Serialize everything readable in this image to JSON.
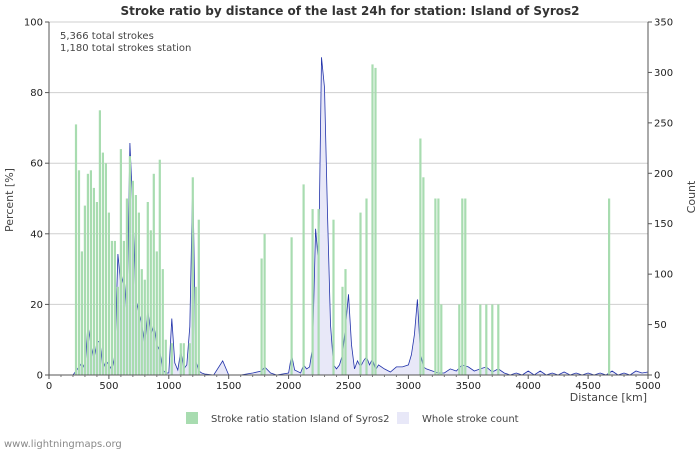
{
  "chart_data": {
    "type": "bar",
    "title": "Stroke ratio by distance of the last 24h for station: Island of Syros2",
    "info_lines": [
      "5,366 total strokes",
      "1,180 total strokes station"
    ],
    "xlabel": "Distance   [km]",
    "ylabel_left": "Percent   [%]",
    "ylabel_right": "Count",
    "xlim": [
      0,
      5000
    ],
    "ylim_left": [
      0,
      100
    ],
    "ylim_right": [
      0,
      350
    ],
    "x_ticks": [
      "0",
      "500",
      "1000",
      "1500",
      "2000",
      "2500",
      "3000",
      "3500",
      "4000",
      "4500",
      "5000"
    ],
    "y_ticks_left": [
      "0",
      "20",
      "40",
      "60",
      "80",
      "100"
    ],
    "y_ticks_right": [
      "0",
      "50",
      "100",
      "150",
      "200",
      "250",
      "300",
      "350"
    ],
    "bin_width_km": 25,
    "series": [
      {
        "name": "Stroke ratio station Island of Syros2",
        "kind": "bar",
        "axis": "left",
        "color": "#a8dcb0",
        "points": [
          [
            225,
            71
          ],
          [
            250,
            58
          ],
          [
            275,
            35
          ],
          [
            300,
            48
          ],
          [
            325,
            57
          ],
          [
            350,
            58
          ],
          [
            375,
            53
          ],
          [
            400,
            49
          ],
          [
            425,
            75
          ],
          [
            450,
            63
          ],
          [
            475,
            60
          ],
          [
            500,
            46
          ],
          [
            525,
            38
          ],
          [
            550,
            38
          ],
          [
            575,
            25
          ],
          [
            600,
            64
          ],
          [
            625,
            38
          ],
          [
            650,
            50
          ],
          [
            675,
            62
          ],
          [
            700,
            55
          ],
          [
            725,
            51
          ],
          [
            750,
            46
          ],
          [
            775,
            30
          ],
          [
            800,
            27
          ],
          [
            825,
            49
          ],
          [
            850,
            41
          ],
          [
            875,
            57
          ],
          [
            900,
            35
          ],
          [
            925,
            61
          ],
          [
            950,
            30
          ],
          [
            975,
            10
          ],
          [
            1025,
            9
          ],
          [
            1100,
            9
          ],
          [
            1125,
            9
          ],
          [
            1175,
            9
          ],
          [
            1200,
            56
          ],
          [
            1225,
            25
          ],
          [
            1250,
            44
          ],
          [
            1775,
            33
          ],
          [
            1800,
            40
          ],
          [
            2025,
            39
          ],
          [
            2125,
            54
          ],
          [
            2200,
            47
          ],
          [
            2250,
            47
          ],
          [
            2375,
            44
          ],
          [
            2450,
            25
          ],
          [
            2475,
            30
          ],
          [
            2600,
            46
          ],
          [
            2650,
            50
          ],
          [
            2700,
            88
          ],
          [
            2725,
            87
          ],
          [
            3100,
            67
          ],
          [
            3125,
            56
          ],
          [
            3225,
            50
          ],
          [
            3250,
            50
          ],
          [
            3275,
            20
          ],
          [
            3425,
            20
          ],
          [
            3450,
            50
          ],
          [
            3475,
            50
          ],
          [
            3600,
            20
          ],
          [
            3650,
            20
          ],
          [
            3700,
            20
          ],
          [
            3750,
            20
          ],
          [
            4675,
            50
          ]
        ]
      },
      {
        "name": "Whole stroke count",
        "kind": "area",
        "axis": "right",
        "color": "#e8e8f8",
        "line_color": "#2233aa",
        "points": [
          [
            200,
            0
          ],
          [
            225,
            4
          ],
          [
            250,
            8
          ],
          [
            275,
            12
          ],
          [
            300,
            6
          ],
          [
            325,
            50
          ],
          [
            350,
            30
          ],
          [
            375,
            16
          ],
          [
            400,
            32
          ],
          [
            425,
            34
          ],
          [
            450,
            6
          ],
          [
            475,
            14
          ],
          [
            500,
            10
          ],
          [
            525,
            5
          ],
          [
            550,
            20
          ],
          [
            575,
            120
          ],
          [
            600,
            88
          ],
          [
            625,
            100
          ],
          [
            650,
            60
          ],
          [
            675,
            230
          ],
          [
            700,
            163
          ],
          [
            725,
            75
          ],
          [
            750,
            62
          ],
          [
            775,
            50
          ],
          [
            800,
            30
          ],
          [
            825,
            65
          ],
          [
            850,
            40
          ],
          [
            875,
            50
          ],
          [
            900,
            30
          ],
          [
            925,
            24
          ],
          [
            950,
            5
          ],
          [
            975,
            2
          ],
          [
            1000,
            2
          ],
          [
            1025,
            56
          ],
          [
            1050,
            12
          ],
          [
            1075,
            5
          ],
          [
            1100,
            24
          ],
          [
            1125,
            6
          ],
          [
            1150,
            10
          ],
          [
            1175,
            48
          ],
          [
            1200,
            195
          ],
          [
            1225,
            14
          ],
          [
            1250,
            4
          ],
          [
            1275,
            2
          ],
          [
            1300,
            1
          ],
          [
            1375,
            0
          ],
          [
            1450,
            14
          ],
          [
            1500,
            0
          ],
          [
            1600,
            0
          ],
          [
            1700,
            2
          ],
          [
            1775,
            4
          ],
          [
            1800,
            8
          ],
          [
            1850,
            2
          ],
          [
            1900,
            0
          ],
          [
            2000,
            2
          ],
          [
            2025,
            20
          ],
          [
            2050,
            5
          ],
          [
            2100,
            2
          ],
          [
            2125,
            10
          ],
          [
            2150,
            6
          ],
          [
            2175,
            8
          ],
          [
            2200,
            28
          ],
          [
            2225,
            145
          ],
          [
            2250,
            110
          ],
          [
            2275,
            315
          ],
          [
            2300,
            285
          ],
          [
            2325,
            160
          ],
          [
            2350,
            50
          ],
          [
            2375,
            10
          ],
          [
            2400,
            6
          ],
          [
            2425,
            10
          ],
          [
            2450,
            20
          ],
          [
            2475,
            48
          ],
          [
            2500,
            80
          ],
          [
            2525,
            30
          ],
          [
            2550,
            6
          ],
          [
            2575,
            14
          ],
          [
            2600,
            8
          ],
          [
            2625,
            14
          ],
          [
            2650,
            18
          ],
          [
            2675,
            10
          ],
          [
            2700,
            16
          ],
          [
            2725,
            5
          ],
          [
            2750,
            10
          ],
          [
            2800,
            6
          ],
          [
            2850,
            3
          ],
          [
            2900,
            8
          ],
          [
            2950,
            8
          ],
          [
            3000,
            10
          ],
          [
            3025,
            20
          ],
          [
            3050,
            40
          ],
          [
            3075,
            75
          ],
          [
            3100,
            22
          ],
          [
            3125,
            8
          ],
          [
            3150,
            6
          ],
          [
            3200,
            4
          ],
          [
            3250,
            2
          ],
          [
            3300,
            2
          ],
          [
            3350,
            6
          ],
          [
            3400,
            4
          ],
          [
            3450,
            10
          ],
          [
            3500,
            8
          ],
          [
            3550,
            4
          ],
          [
            3600,
            6
          ],
          [
            3650,
            8
          ],
          [
            3700,
            3
          ],
          [
            3750,
            6
          ],
          [
            3800,
            2
          ],
          [
            3850,
            0
          ],
          [
            3900,
            2
          ],
          [
            3950,
            0
          ],
          [
            4000,
            4
          ],
          [
            4050,
            0
          ],
          [
            4100,
            4
          ],
          [
            4150,
            0
          ],
          [
            4200,
            2
          ],
          [
            4250,
            0
          ],
          [
            4300,
            3
          ],
          [
            4350,
            0
          ],
          [
            4400,
            2
          ],
          [
            4450,
            0
          ],
          [
            4500,
            2
          ],
          [
            4550,
            0
          ],
          [
            4600,
            2
          ],
          [
            4650,
            0
          ],
          [
            4700,
            4
          ],
          [
            4750,
            0
          ],
          [
            4800,
            2
          ],
          [
            4850,
            0
          ],
          [
            4900,
            4
          ],
          [
            4950,
            2
          ],
          [
            5000,
            3
          ]
        ]
      }
    ]
  },
  "footer": "www.lightningmaps.org"
}
